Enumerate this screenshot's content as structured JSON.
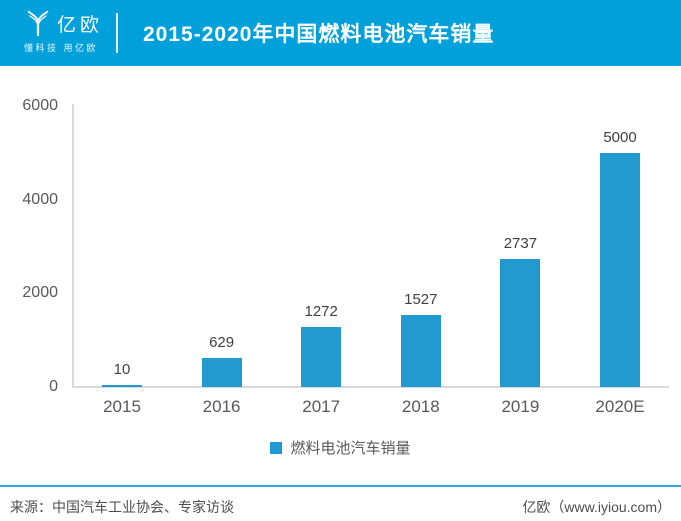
{
  "header": {
    "brand": "亿欧",
    "tagline": "懂科技 用亿欧",
    "title": "2015-2020年中国燃料电池汽车销量",
    "bg_color": "#00A0DB"
  },
  "chart_data": {
    "type": "bar",
    "title": "2015-2020年中国燃料电池汽车销量",
    "categories": [
      "2015",
      "2016",
      "2017",
      "2018",
      "2019",
      "2020E"
    ],
    "values": [
      10,
      629,
      1272,
      1527,
      2737,
      5000
    ],
    "series_name": "燃料电池汽车销量",
    "xlabel": "",
    "ylabel": "",
    "ylim": [
      0,
      6000
    ],
    "yticks": [
      0,
      2000,
      4000,
      6000
    ],
    "bar_color": "#2299CF",
    "grid": false,
    "legend_position": "bottom",
    "data_labels": true
  },
  "legend": {
    "label": "燃料电池汽车销量"
  },
  "footer": {
    "source": "来源：中国汽车工业协会、专家访谈",
    "brand": "亿欧（www.iyiou.com）"
  }
}
